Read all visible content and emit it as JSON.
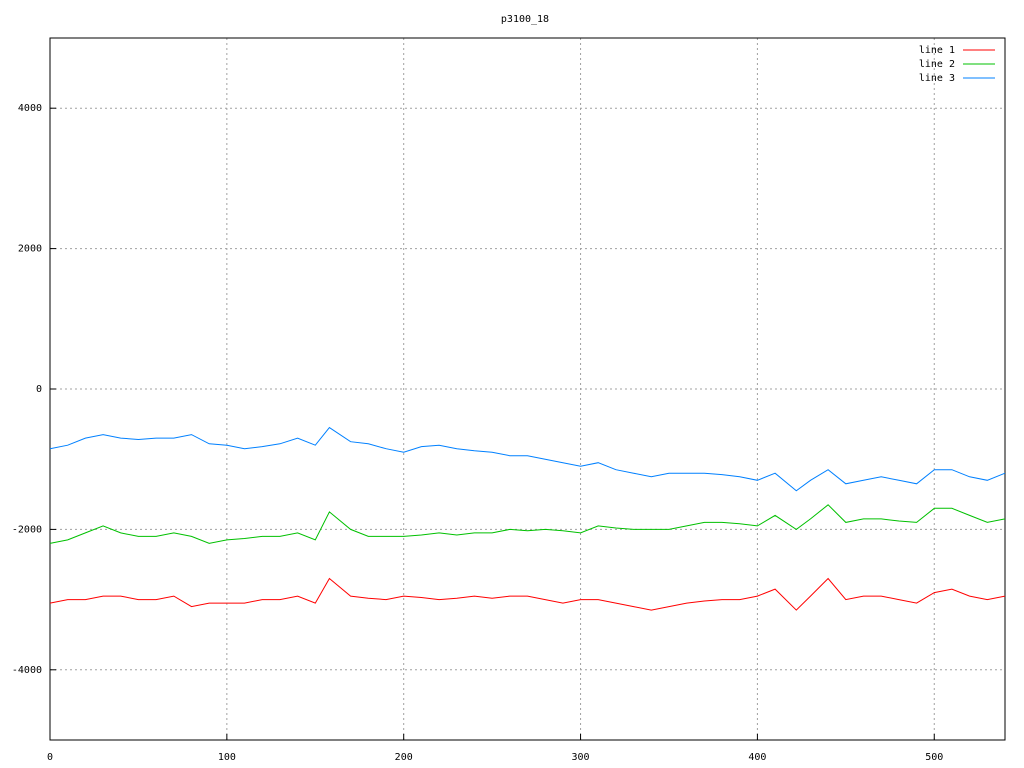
{
  "chart_data": {
    "type": "line",
    "title": "p3100_18",
    "x": [
      0,
      10,
      20,
      30,
      40,
      50,
      60,
      70,
      80,
      90,
      100,
      110,
      120,
      130,
      140,
      150,
      158,
      170,
      180,
      190,
      200,
      210,
      220,
      230,
      240,
      250,
      260,
      270,
      280,
      290,
      300,
      310,
      320,
      330,
      340,
      350,
      360,
      370,
      380,
      390,
      400,
      410,
      422,
      430,
      440,
      450,
      460,
      470,
      480,
      490,
      500,
      510,
      520,
      530,
      540
    ],
    "series": [
      {
        "name": "line 1",
        "color": "#ff0000",
        "values": [
          -3050,
          -3000,
          -3000,
          -2950,
          -2950,
          -3000,
          -3000,
          -2950,
          -3100,
          -3050,
          -3050,
          -3050,
          -3000,
          -3000,
          -2950,
          -3050,
          -2700,
          -2950,
          -2980,
          -3000,
          -2950,
          -2970,
          -3000,
          -2980,
          -2950,
          -2980,
          -2950,
          -2950,
          -3000,
          -3050,
          -3000,
          -3000,
          -3050,
          -3100,
          -3150,
          -3100,
          -3050,
          -3020,
          -3000,
          -3000,
          -2950,
          -2850,
          -3150,
          -2950,
          -2700,
          -3000,
          -2950,
          -2950,
          -3000,
          -3050,
          -2900,
          -2850,
          -2950,
          -3000,
          -2950
        ]
      },
      {
        "name": "line 2",
        "color": "#00c000",
        "values": [
          -2200,
          -2150,
          -2050,
          -1950,
          -2050,
          -2100,
          -2100,
          -2050,
          -2100,
          -2200,
          -2150,
          -2130,
          -2100,
          -2100,
          -2050,
          -2150,
          -1750,
          -2000,
          -2100,
          -2100,
          -2100,
          -2080,
          -2050,
          -2080,
          -2050,
          -2050,
          -2000,
          -2020,
          -2000,
          -2020,
          -2050,
          -1950,
          -1980,
          -2000,
          -2000,
          -2000,
          -1950,
          -1900,
          -1900,
          -1920,
          -1950,
          -1800,
          -2000,
          -1850,
          -1650,
          -1900,
          -1850,
          -1850,
          -1880,
          -1900,
          -1700,
          -1700,
          -1800,
          -1900,
          -1850
        ]
      },
      {
        "name": "line 3",
        "color": "#0080ff",
        "values": [
          -850,
          -800,
          -700,
          -650,
          -700,
          -720,
          -700,
          -700,
          -650,
          -780,
          -800,
          -850,
          -820,
          -780,
          -700,
          -800,
          -550,
          -750,
          -780,
          -850,
          -900,
          -820,
          -800,
          -850,
          -880,
          -900,
          -950,
          -950,
          -1000,
          -1050,
          -1100,
          -1050,
          -1150,
          -1200,
          -1250,
          -1200,
          -1200,
          -1200,
          -1220,
          -1250,
          -1300,
          -1200,
          -1450,
          -1300,
          -1150,
          -1350,
          -1300,
          -1250,
          -1300,
          -1350,
          -1150,
          -1150,
          -1250,
          -1300,
          -1200
        ]
      }
    ],
    "xlim": [
      0,
      540
    ],
    "xticks": [
      0,
      100,
      200,
      300,
      400,
      500
    ],
    "ylim": [
      -5000,
      5000
    ],
    "yticks": [
      -4000,
      -2000,
      0,
      2000,
      4000
    ],
    "grid": true,
    "legend": "top-right"
  }
}
